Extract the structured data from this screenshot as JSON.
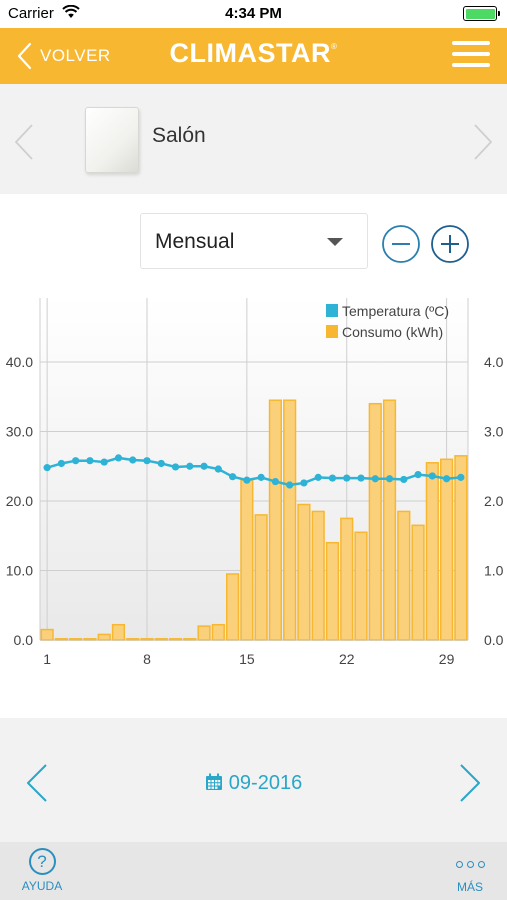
{
  "status_bar": {
    "carrier": "Carrier",
    "time": "4:34 PM",
    "battery_level": 1.0
  },
  "header": {
    "back_label": "VOLVER",
    "logo_text": "CLIMASTAR",
    "logo_mark": "®",
    "menu_icon": "hamburger-icon",
    "background": "#f7b731"
  },
  "device": {
    "name": "Salón",
    "icon": "radiator-panel-image"
  },
  "period": {
    "selected": "Mensual"
  },
  "chart_data": {
    "type": "bar",
    "legend_position": "top-right",
    "grid": true,
    "x": [
      1,
      2,
      3,
      4,
      5,
      6,
      7,
      8,
      9,
      10,
      11,
      12,
      13,
      14,
      15,
      16,
      17,
      18,
      19,
      20,
      21,
      22,
      23,
      24,
      25,
      26,
      27,
      28,
      29,
      30
    ],
    "x_ticks": [
      "1",
      "8",
      "15",
      "22",
      "29"
    ],
    "left_axis": {
      "ticks": [
        "0.0",
        "10.0",
        "20.0",
        "30.0",
        "40.0"
      ],
      "range": [
        0,
        40
      ]
    },
    "right_axis": {
      "ticks": [
        "0.0",
        "1.0",
        "2.0",
        "3.0",
        "4.0"
      ],
      "range": [
        0,
        4
      ]
    },
    "series": [
      {
        "name": "Temperatura (ºC)",
        "kind": "line",
        "axis": "left",
        "color": "#2eb2d6",
        "values": [
          24.8,
          25.4,
          25.8,
          25.8,
          25.6,
          26.2,
          25.9,
          25.8,
          25.4,
          24.9,
          25.0,
          25.0,
          24.6,
          23.5,
          23.0,
          23.4,
          22.8,
          22.3,
          22.6,
          23.4,
          23.3,
          23.3,
          23.3,
          23.2,
          23.2,
          23.1,
          23.8,
          23.6,
          23.2,
          23.4
        ]
      },
      {
        "name": "Consumo (kWh)",
        "kind": "bar",
        "axis": "right",
        "color": "#f7b731",
        "values": [
          0.15,
          0.0,
          0.0,
          0.0,
          0.08,
          0.22,
          0.0,
          0.0,
          0.0,
          0.0,
          0.0,
          0.2,
          0.22,
          0.95,
          2.3,
          1.8,
          3.45,
          3.45,
          1.95,
          1.85,
          1.4,
          1.75,
          1.55,
          3.4,
          3.45,
          1.85,
          1.65,
          2.55,
          2.6,
          2.65
        ]
      }
    ]
  },
  "date_nav": {
    "label": "09-2016",
    "accent": "#2aa6c9"
  },
  "bottom_bar": {
    "help_symbol": "?",
    "help_label": "AYUDA",
    "more_label": "MÁS"
  }
}
